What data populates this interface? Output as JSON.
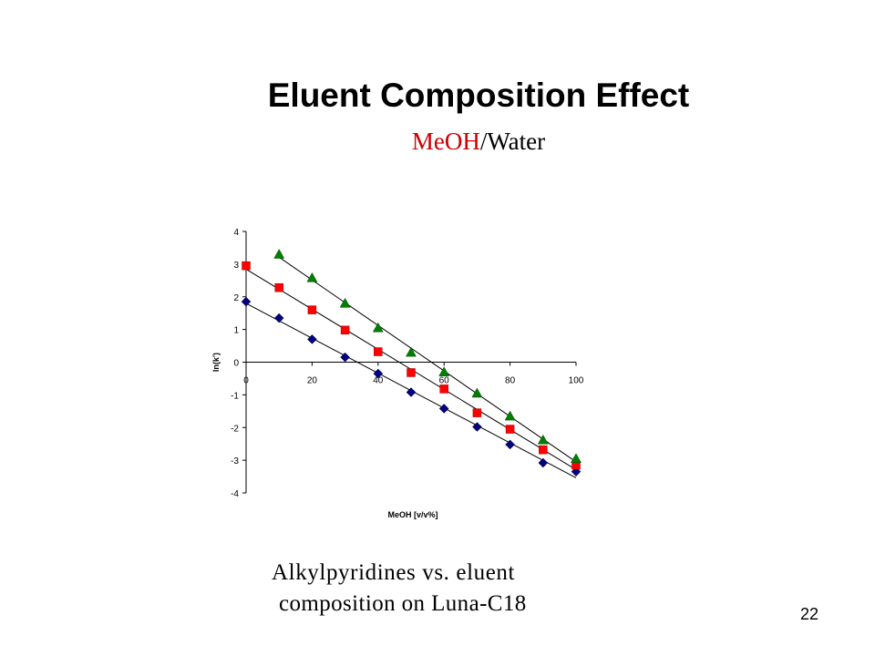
{
  "slide": {
    "title": "Eluent Composition Effect",
    "subtitle_part1": "MeOH",
    "subtitle_part2": "/Water",
    "caption_line1": "Alkylpyridines vs. eluent",
    "caption_line2": "composition on Luna-C18",
    "page_number": "22",
    "subtitle_accent_color": "#cc0000"
  },
  "chart_data": {
    "type": "scatter",
    "title": "",
    "xlabel": "MeOH [v/v%]",
    "ylabel": "ln(k')",
    "xlim": [
      0,
      100
    ],
    "ylim": [
      -4,
      4
    ],
    "x_ticks": [
      0,
      20,
      40,
      60,
      80,
      100
    ],
    "y_ticks": [
      4,
      3,
      2,
      1,
      0,
      -1,
      -2,
      -3,
      -4
    ],
    "grid": false,
    "legend": "none",
    "trendlines": "linear",
    "series": [
      {
        "marker": "diamond",
        "color": "#000080",
        "x": [
          0,
          10,
          20,
          30,
          40,
          50,
          60,
          70,
          80,
          90,
          100
        ],
        "y": [
          1.85,
          1.35,
          0.7,
          0.15,
          -0.35,
          -0.92,
          -1.42,
          -1.98,
          -2.52,
          -3.08,
          -3.35
        ]
      },
      {
        "marker": "square",
        "color": "#ff0000",
        "x": [
          0,
          10,
          20,
          30,
          40,
          50,
          60,
          70,
          80,
          90,
          100
        ],
        "y": [
          2.95,
          2.28,
          1.6,
          0.98,
          0.32,
          -0.32,
          -0.82,
          -1.55,
          -2.05,
          -2.68,
          -3.15
        ]
      },
      {
        "marker": "triangle",
        "color": "#008000",
        "x": [
          10,
          20,
          30,
          40,
          50,
          60,
          70,
          80,
          90,
          100
        ],
        "y": [
          3.3,
          2.58,
          1.8,
          1.05,
          0.3,
          -0.3,
          -0.95,
          -1.65,
          -2.38,
          -2.95
        ]
      }
    ]
  }
}
